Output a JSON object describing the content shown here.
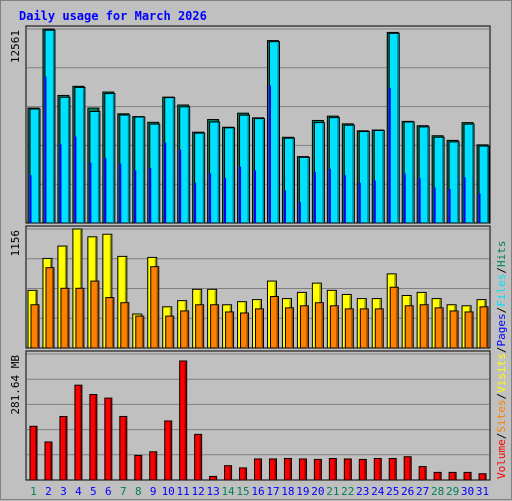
{
  "chart_data": {
    "type": "bar",
    "title": "Daily usage for March 2026",
    "categories": [
      "1",
      "2",
      "3",
      "4",
      "5",
      "6",
      "7",
      "8",
      "9",
      "10",
      "11",
      "12",
      "13",
      "14",
      "15",
      "16",
      "17",
      "18",
      "19",
      "20",
      "21",
      "22",
      "23",
      "24",
      "25",
      "26",
      "27",
      "28",
      "29",
      "30",
      "31"
    ],
    "weekend_days": [
      1,
      7,
      8,
      14,
      15,
      21,
      22,
      28,
      29
    ],
    "panels": [
      {
        "name": "hits-files-pages",
        "y_max_label": "12561",
        "ylim": [
          0,
          12561
        ],
        "series": [
          {
            "name": "Hits",
            "color": "#00805c",
            "values": [
              7440,
              12561,
              8260,
              8850,
              7440,
              8480,
              7070,
              6890,
              6520,
              8150,
              7640,
              5880,
              6700,
              6200,
              7110,
              6810,
              11810,
              5550,
              4300,
              6640,
              6920,
              6420,
              5970,
              6020,
              12340,
              6580,
              6300,
              5650,
              5350,
              6500,
              5060
            ]
          },
          {
            "name": "Files",
            "color": "#00e0ff",
            "values": [
              7380,
              12480,
              8140,
              8780,
              7220,
              8380,
              6990,
              6860,
              6400,
              8120,
              7520,
              5820,
              6540,
              6160,
              6980,
              6760,
              11740,
              5490,
              4250,
              6500,
              6820,
              6330,
              5920,
              5990,
              12280,
              6540,
              6220,
              5550,
              5250,
              6400,
              4980
            ]
          },
          {
            "name": "Pages",
            "color": "#0000ff",
            "values": [
              3100,
              9480,
              5100,
              5600,
              3900,
              4200,
              3850,
              3400,
              3550,
              5200,
              4750,
              2600,
              3200,
              2900,
              3650,
              3400,
              8900,
              2100,
              1350,
              3300,
              3500,
              3100,
              2600,
              2750,
              8750,
              3200,
              2900,
              2300,
              2200,
              2950,
              1900
            ]
          }
        ]
      },
      {
        "name": "visits-sites",
        "y_max_label": "1156",
        "ylim": [
          0,
          1156
        ],
        "series": [
          {
            "name": "Visits",
            "color": "#ffff00",
            "values": [
              560,
              870,
              990,
              1156,
              1080,
              1105,
              890,
              330,
              880,
              400,
              460,
              570,
              570,
              420,
              450,
              470,
              650,
              480,
              540,
              630,
              560,
              520,
              480,
              480,
              720,
              510,
              540,
              480,
              420,
              410,
              470
            ]
          },
          {
            "name": "Sites",
            "color": "#ff8000",
            "values": [
              420,
              780,
              580,
              580,
              650,
              490,
              440,
              310,
              790,
              310,
              360,
              420,
              420,
              350,
              340,
              380,
              500,
              390,
              410,
              440,
              410,
              380,
              380,
              380,
              590,
              410,
              420,
              390,
              360,
              350,
              400
            ]
          }
        ]
      },
      {
        "name": "volume",
        "y_max_label": "281.64 MB",
        "ylim": [
          0,
          281.64
        ],
        "series": [
          {
            "name": "Volume",
            "color": "#ff0000",
            "values": [
              120,
              85,
              142,
              212,
              191,
              183,
              142,
              55,
              63,
              132,
              266,
              102,
              8,
              32,
              27,
              47,
              47,
              48,
              47,
              46,
              48,
              47,
              46,
              48,
              48,
              52,
              30,
              17,
              17,
              17,
              14
            ]
          }
        ]
      }
    ],
    "legend": [
      "Volume",
      "Sites",
      "Visits",
      "Pages",
      "Files",
      "Hits"
    ],
    "legend_separator": "/"
  },
  "colors": {
    "background": "#c0c0c0",
    "plot_bg": "#c0c0c0",
    "grid": "#808080",
    "weekday_tick": "#0000ff",
    "weekend_tick": "#00805c",
    "title": "#0000ff"
  }
}
